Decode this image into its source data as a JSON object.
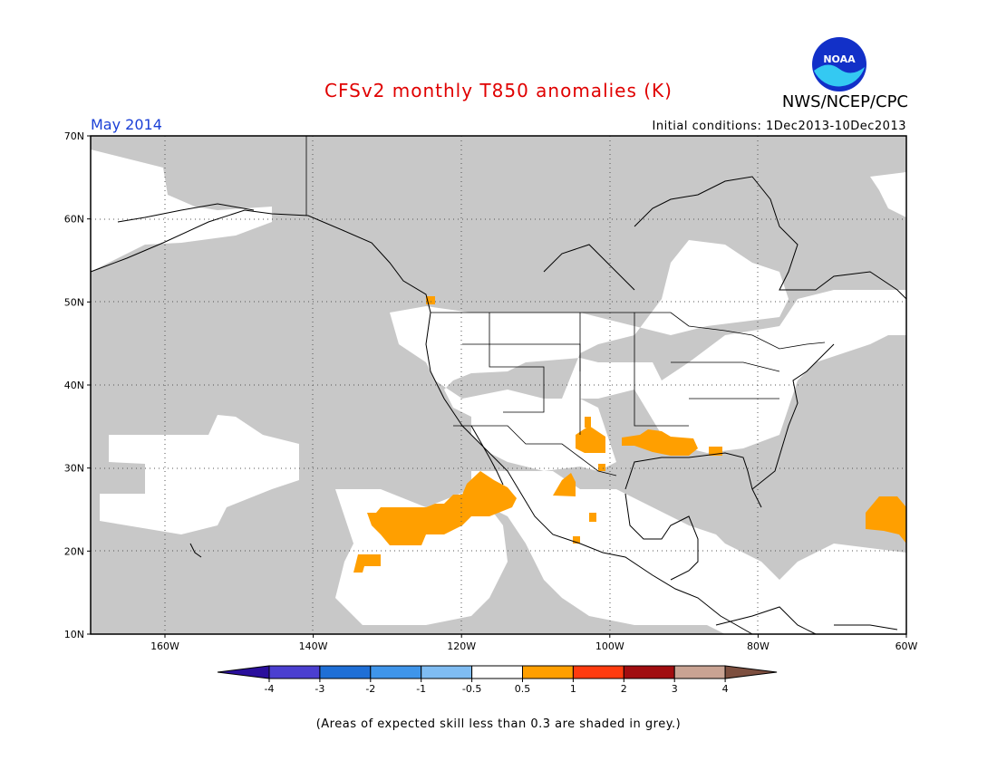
{
  "header": {
    "title": "CFSv2 monthly T850 anomalies (K)",
    "org": "NWS/NCEP/CPC",
    "period": "May 2014",
    "initial_conditions": "Initial conditions: 1Dec2013-10Dec2013",
    "logo_text": "NOAA"
  },
  "map": {
    "lat_labels": [
      "70N",
      "60N",
      "50N",
      "40N",
      "30N",
      "20N",
      "10N"
    ],
    "lon_labels": [
      "160W",
      "140W",
      "120W",
      "100W",
      "80W",
      "60W"
    ]
  },
  "legend": {
    "labels": [
      "-4",
      "-3",
      "-2",
      "-1",
      "-0.5",
      "0.5",
      "1",
      "2",
      "3",
      "4"
    ],
    "colors": [
      "#2a0f9c",
      "#4b3fd0",
      "#1f6fd6",
      "#3f95ea",
      "#7fbcf2",
      "#ffffff",
      "#ff9f00",
      "#ff3b0f",
      "#a10d10",
      "#c9a393",
      "#7d4f3f"
    ]
  },
  "colors": {
    "grey_shade": "#c8c8c8",
    "positive_anomaly": "#ff9f00",
    "title_red": "#e00000",
    "period_blue": "#1a3fd6"
  },
  "footnote": "(Areas of expected skill less than 0.3 are shaded in grey.)"
}
